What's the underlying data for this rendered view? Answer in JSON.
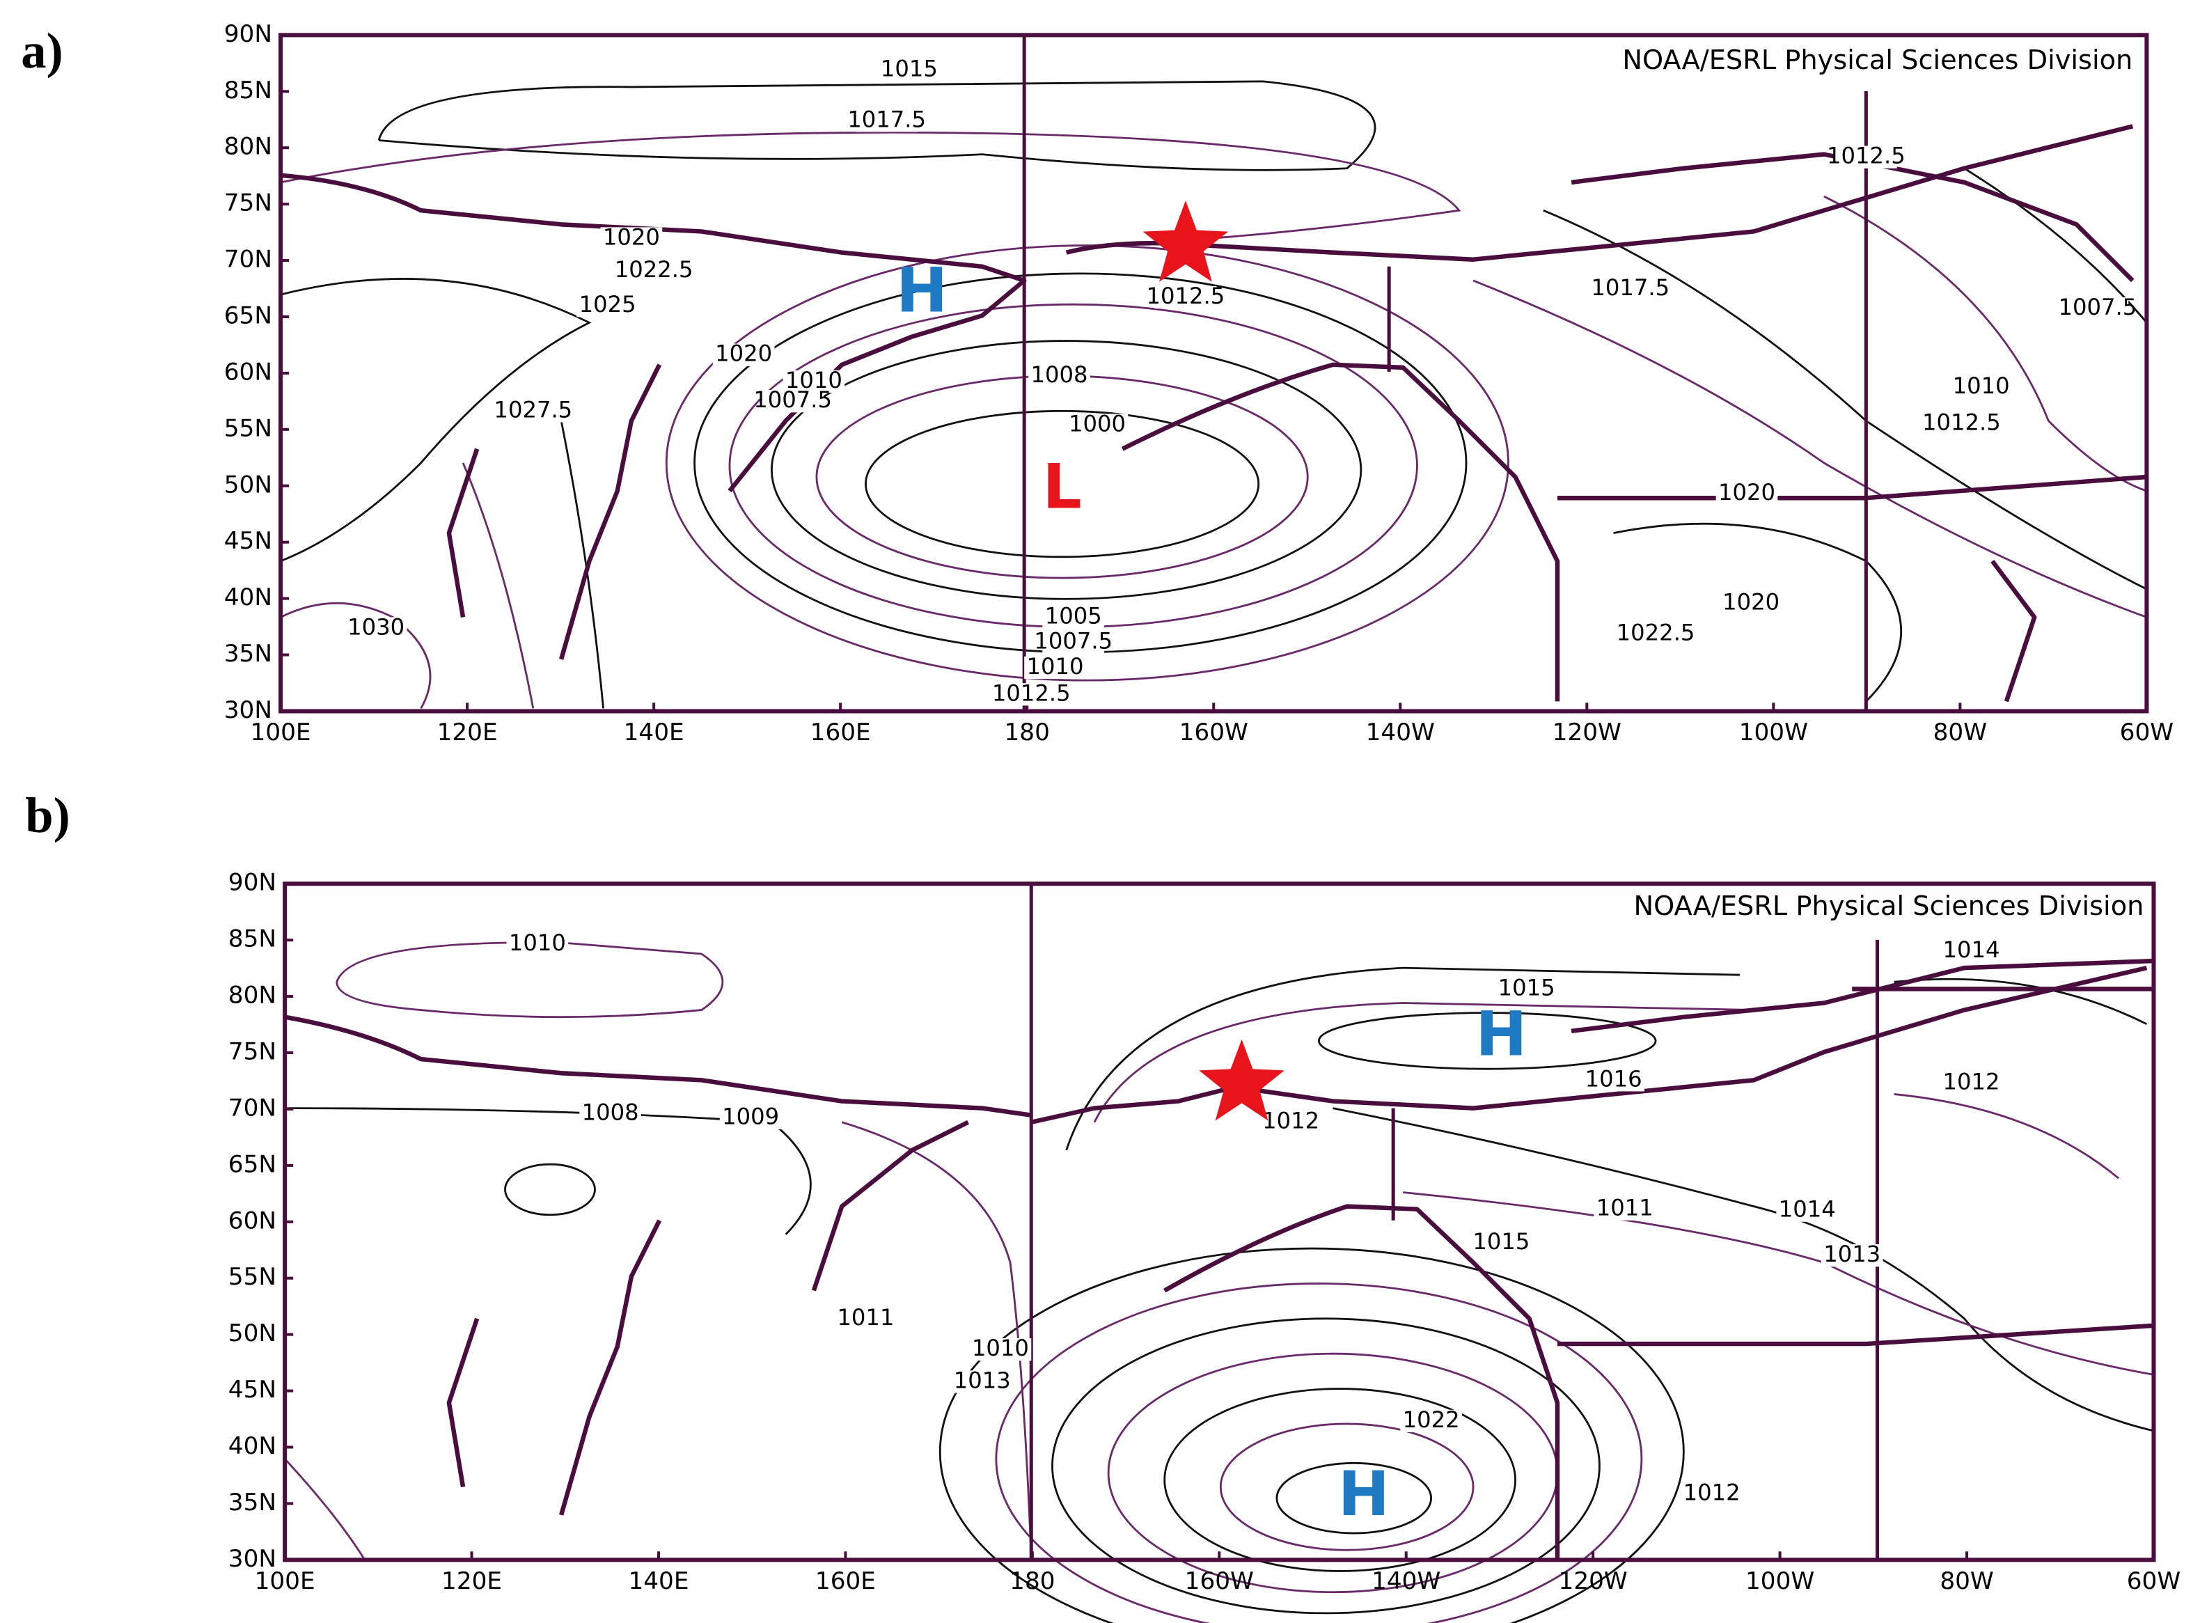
{
  "panels": [
    {
      "label": "a)",
      "credit": "NOAA/ESRL  Physical  Sciences  Division",
      "lat_labels": [
        "90N",
        "85N",
        "80N",
        "75N",
        "70N",
        "65N",
        "60N",
        "55N",
        "50N",
        "45N",
        "40N",
        "35N",
        "30N"
      ],
      "lon_labels": [
        "100E",
        "120E",
        "140E",
        "160E",
        "180",
        "160W",
        "140W",
        "120W",
        "100W",
        "80W",
        "60W"
      ],
      "contour_labels": [
        "1015",
        "1017.5",
        "1020",
        "1022.5",
        "1025",
        "1027.5",
        "1020",
        "1010",
        "1007.5",
        "1000",
        "1012.5",
        "1008",
        "1005",
        "1007.5",
        "1010",
        "1012.5",
        "1017.5",
        "1012.5",
        "1007.5",
        "1010",
        "1012.5",
        "1020",
        "1020",
        "1022.5",
        "1030"
      ],
      "markers": [
        {
          "text": "H",
          "color": "#1f7ac4"
        },
        {
          "text": "L",
          "color": "#e8141c"
        }
      ],
      "star_color": "#e8141c"
    },
    {
      "label": "b)",
      "credit": "NOAA/ESRL  Physical  Sciences  Division",
      "lat_labels": [
        "90N",
        "85N",
        "80N",
        "75N",
        "70N",
        "65N",
        "60N",
        "55N",
        "50N",
        "45N",
        "40N",
        "35N",
        "30N"
      ],
      "lon_labels": [
        "100E",
        "120E",
        "140E",
        "160E",
        "180",
        "160W",
        "140W",
        "120W",
        "100W",
        "80W",
        "60W"
      ],
      "contour_labels": [
        "1010",
        "1008",
        "1009",
        "1011",
        "1010",
        "1013",
        "1015",
        "1016",
        "1012",
        "1011",
        "1014",
        "1015",
        "1013",
        "1022",
        "1012",
        "1014",
        "1012"
      ],
      "markers": [
        {
          "text": "H",
          "color": "#1f7ac4"
        },
        {
          "text": "H",
          "color": "#1f7ac4"
        }
      ],
      "star_color": "#e8141c"
    }
  ]
}
